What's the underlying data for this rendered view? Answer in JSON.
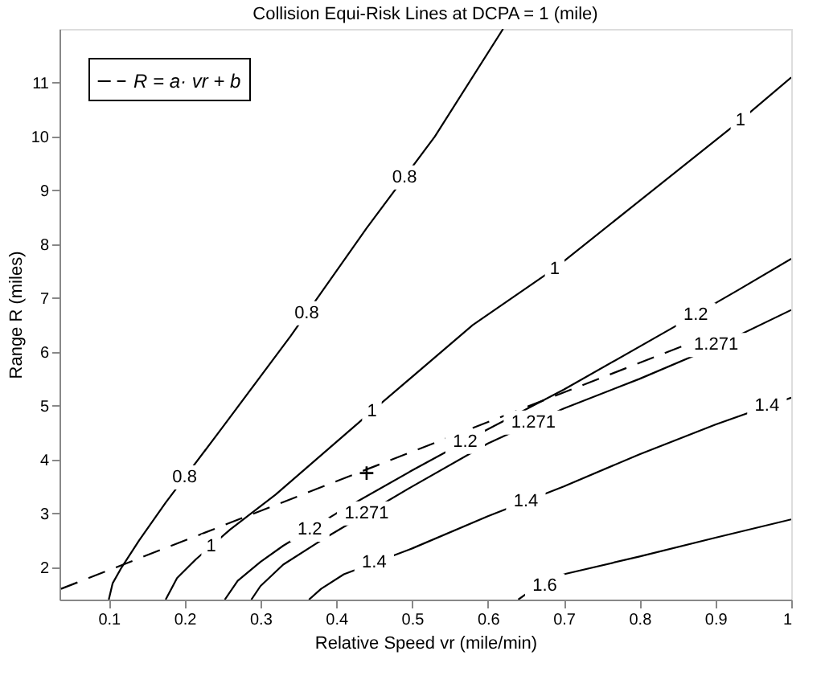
{
  "chart_data": {
    "type": "line",
    "title": "Collision Equi-Risk Lines at DCPA = 1 (mile)",
    "xlabel": "Relative Speed vr (mile/min)",
    "ylabel": "Range R (miles)",
    "xlim": [
      0.035,
      1
    ],
    "ylim": [
      1.4,
      12
    ],
    "xticks": [
      0.1,
      0.2,
      0.3,
      0.4,
      0.5,
      0.6,
      0.7,
      0.8,
      0.9,
      {
        "value": 1,
        "label": "1"
      }
    ],
    "yticks": [
      2,
      3,
      4,
      5,
      6,
      7,
      8,
      9,
      10,
      11
    ],
    "grid": false,
    "legend": "top left",
    "series": [
      {
        "color": "#000000",
        "line_style": "solid",
        "x": [
          0.1,
          0.105,
          0.117,
          0.14,
          0.175,
          0.25,
          0.34,
          0.44,
          0.53,
          0.62
        ],
        "values": [
          1.4,
          1.7,
          2.0,
          2.5,
          3.2,
          4.6,
          6.3,
          8.3,
          10.0,
          12.0
        ]
      },
      {
        "color": "#000000",
        "line_style": "solid",
        "x": [
          0.175,
          0.19,
          0.215,
          0.26,
          0.32,
          0.447,
          0.58,
          0.688,
          0.933,
          1
        ],
        "values": [
          1.4,
          1.8,
          2.15,
          2.7,
          3.35,
          4.9,
          6.5,
          7.55,
          10.3,
          11.1
        ]
      },
      {
        "color": "#000000",
        "line_style": "solid",
        "x": [
          0.253,
          0.27,
          0.3,
          0.33,
          0.4,
          0.5,
          0.598,
          0.7,
          0.85,
          0.93,
          1
        ],
        "values": [
          1.4,
          1.75,
          2.1,
          2.4,
          3.0,
          3.8,
          4.55,
          5.3,
          6.5,
          7.15,
          7.73
        ]
      },
      {
        "color": "#000000",
        "line_style": "solid",
        "x": [
          0.288,
          0.3,
          0.33,
          0.38,
          0.5,
          0.6,
          0.7,
          0.8,
          0.9,
          1
        ],
        "values": [
          1.4,
          1.65,
          2.05,
          2.5,
          3.5,
          4.3,
          4.95,
          5.5,
          6.1,
          6.78
        ]
      },
      {
        "color": "#000000",
        "line_style": "solid",
        "x": [
          0.364,
          0.38,
          0.41,
          0.5,
          0.6,
          0.7,
          0.8,
          0.9,
          1
        ],
        "values": [
          1.4,
          1.6,
          1.87,
          2.35,
          2.95,
          3.5,
          4.1,
          4.65,
          5.15
        ]
      },
      {
        "color": "#000000",
        "line_style": "solid",
        "x": [
          0.64,
          0.66,
          0.7,
          0.8,
          0.9,
          1
        ],
        "values": [
          1.4,
          1.6,
          1.87,
          2.2,
          2.55,
          2.89
        ]
      },
      {
        "name": "R = a· vr + b",
        "color": "#000000",
        "line_style": "dashed",
        "x": [
          0.037,
          0.855
        ],
        "values": [
          1.6,
          6.1
        ]
      },
      {
        "type": "scatter",
        "marker": "cross",
        "color": "#000000",
        "x": [
          0.44
        ],
        "values": [
          3.75
        ]
      }
    ],
    "annotations": [
      {
        "text": "0.8",
        "x": 0.2,
        "y": 3.67
      },
      {
        "text": "0.8",
        "x": 0.361,
        "y": 6.72
      },
      {
        "text": "0.8",
        "x": 0.49,
        "y": 9.24
      },
      {
        "text": "1",
        "x": 0.235,
        "y": 2.39
      },
      {
        "text": "1",
        "x": 0.447,
        "y": 4.9
      },
      {
        "text": "1",
        "x": 0.688,
        "y": 7.53
      },
      {
        "text": "1",
        "x": 0.933,
        "y": 10.3
      },
      {
        "text": "1.2",
        "x": 0.365,
        "y": 2.7
      },
      {
        "text": "1.2",
        "x": 0.57,
        "y": 4.33
      },
      {
        "text": "1.2",
        "x": 0.874,
        "y": 6.69
      },
      {
        "text": "1.271",
        "x": 0.44,
        "y": 3.0
      },
      {
        "text": "1.271",
        "x": 0.66,
        "y": 4.69
      },
      {
        "text": "1.271",
        "x": 0.901,
        "y": 6.13
      },
      {
        "text": "1.4",
        "x": 0.45,
        "y": 2.08
      },
      {
        "text": "1.4",
        "x": 0.65,
        "y": 3.225
      },
      {
        "text": "1.4",
        "x": 0.968,
        "y": 5.0
      },
      {
        "text": "1.6",
        "x": 0.675,
        "y": 1.66
      }
    ]
  }
}
